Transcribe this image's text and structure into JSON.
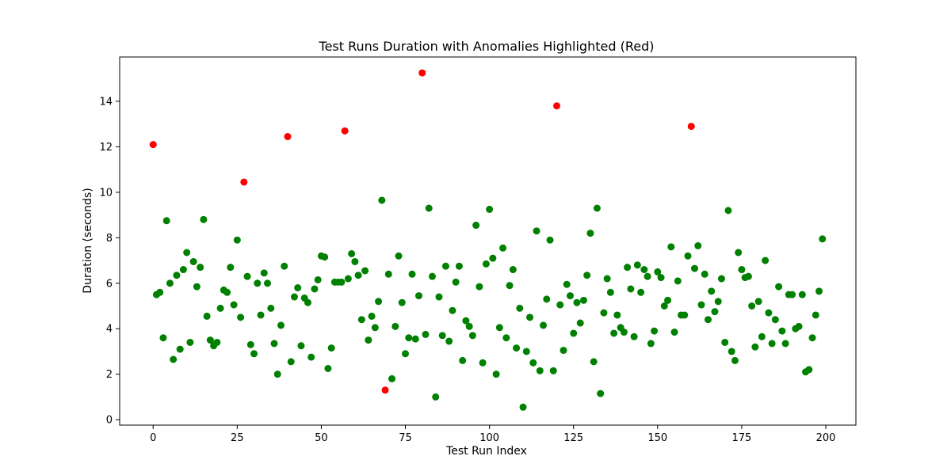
{
  "chart_data": {
    "type": "scatter",
    "title": "Test Runs Duration with Anomalies Highlighted (Red)",
    "xlabel": "Test Run Index",
    "ylabel": "Duration (seconds)",
    "xlim": [
      -9.95,
      208.95
    ],
    "ylim": [
      -0.24,
      15.95
    ],
    "xticks": [
      0,
      25,
      50,
      75,
      100,
      125,
      150,
      175,
      200
    ],
    "yticks": [
      0,
      2,
      4,
      6,
      8,
      10,
      12,
      14
    ],
    "grid": false,
    "colors": {
      "normal": "#008000",
      "anomaly": "#ff0000"
    },
    "series": [
      {
        "color": "#008000",
        "x": [
          1,
          2,
          3,
          4,
          5,
          6,
          7,
          8,
          9,
          10,
          11,
          12,
          13,
          14,
          15,
          16,
          17,
          18,
          19,
          20,
          21,
          22,
          23,
          24,
          25,
          26,
          28,
          29,
          30,
          31,
          32,
          33,
          34,
          35,
          36,
          37,
          38,
          39,
          41,
          42,
          43,
          44,
          45,
          46,
          47,
          48,
          49,
          50,
          51,
          52,
          53,
          54,
          55,
          56,
          58,
          59,
          60,
          61,
          62,
          63,
          64,
          65,
          66,
          67,
          68,
          70,
          71,
          72,
          73,
          74,
          75,
          76,
          77,
          78,
          79,
          81,
          82,
          83,
          84,
          85,
          86,
          87,
          88,
          89,
          90,
          91,
          92,
          93,
          94,
          95,
          96,
          97,
          98,
          99,
          100,
          101,
          102,
          103,
          104,
          105,
          106,
          107,
          108,
          109,
          110,
          111,
          112,
          113,
          114,
          115,
          116,
          117,
          118,
          119,
          121,
          122,
          123,
          124,
          125,
          126,
          127,
          128,
          129,
          130,
          131,
          132,
          133,
          134,
          135,
          136,
          137,
          138,
          139,
          140,
          141,
          142,
          143,
          144,
          145,
          146,
          147,
          148,
          149,
          150,
          151,
          152,
          153,
          154,
          155,
          156,
          157,
          158,
          159,
          161,
          162,
          163,
          164,
          165,
          166,
          167,
          168,
          169,
          170,
          171,
          172,
          173,
          174,
          175,
          176,
          177,
          178,
          179,
          180,
          181,
          182,
          183,
          184,
          185,
          186,
          187,
          188,
          189,
          190,
          191,
          192,
          193,
          194,
          195,
          196,
          197,
          198,
          199
        ],
        "y": [
          5.5,
          5.6,
          3.6,
          8.75,
          6.0,
          2.65,
          6.35,
          3.1,
          6.6,
          7.35,
          3.4,
          6.95,
          5.85,
          6.7,
          8.8,
          4.55,
          3.5,
          3.25,
          3.4,
          4.9,
          5.7,
          5.6,
          6.7,
          5.05,
          7.9,
          4.5,
          6.3,
          3.3,
          2.9,
          6.0,
          4.6,
          6.45,
          6.0,
          4.9,
          3.35,
          2.0,
          4.15,
          6.75,
          2.55,
          5.4,
          5.8,
          3.25,
          5.35,
          5.15,
          2.75,
          5.75,
          6.15,
          7.2,
          7.15,
          2.25,
          3.15,
          6.05,
          6.05,
          6.05,
          6.2,
          7.3,
          6.95,
          6.35,
          4.4,
          6.55,
          3.5,
          4.55,
          4.05,
          5.2,
          9.65,
          6.4,
          1.8,
          4.1,
          7.2,
          5.15,
          2.9,
          3.6,
          6.4,
          3.55,
          5.45,
          3.75,
          9.3,
          6.3,
          1.0,
          5.4,
          3.7,
          6.75,
          3.45,
          4.8,
          6.05,
          6.75,
          2.6,
          4.35,
          4.1,
          3.7,
          8.55,
          5.85,
          2.5,
          6.85,
          9.25,
          7.1,
          2.0,
          4.05,
          7.55,
          3.6,
          5.9,
          6.6,
          3.15,
          4.9,
          0.55,
          3.0,
          4.5,
          2.5,
          8.3,
          2.15,
          4.15,
          5.3,
          7.9,
          2.15,
          5.05,
          3.05,
          5.95,
          5.45,
          3.8,
          5.15,
          4.25,
          5.25,
          6.35,
          8.2,
          2.55,
          9.3,
          1.15,
          4.7,
          6.2,
          5.6,
          3.8,
          4.6,
          4.05,
          3.85,
          6.7,
          5.75,
          3.65,
          6.8,
          5.6,
          6.6,
          6.3,
          3.35,
          3.9,
          6.5,
          6.25,
          5.0,
          5.25,
          7.6,
          3.85,
          6.1,
          4.6,
          4.6,
          7.2,
          6.65,
          7.65,
          5.05,
          6.4,
          4.4,
          5.65,
          4.75,
          5.2,
          6.2,
          3.4,
          9.2,
          3.0,
          2.6,
          7.35,
          6.6,
          6.25,
          6.3,
          5.0,
          3.2,
          5.2,
          3.65,
          7.0,
          4.7,
          3.35,
          4.4,
          5.85,
          3.9,
          3.35,
          5.5,
          5.5,
          4.0,
          4.1,
          5.5,
          2.1,
          2.2,
          3.6,
          4.6,
          5.65,
          7.95
        ]
      },
      {
        "color": "#ff0000",
        "x": [
          0,
          27,
          40,
          57,
          69,
          80,
          120,
          160
        ],
        "y": [
          12.1,
          10.45,
          12.45,
          12.7,
          1.3,
          15.25,
          13.8,
          12.9
        ]
      }
    ]
  }
}
